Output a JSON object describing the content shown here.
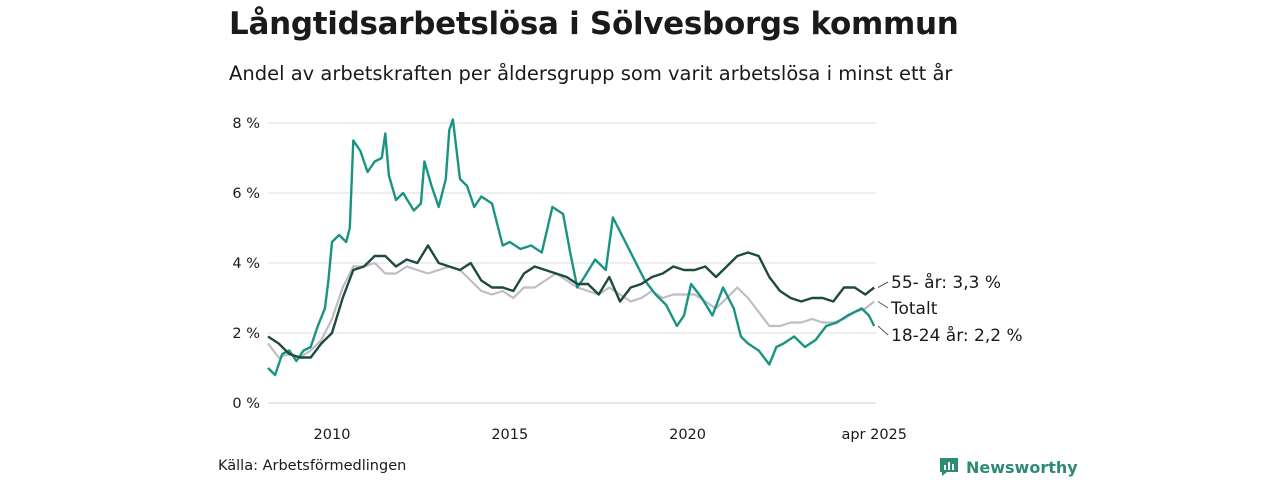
{
  "header": {
    "title": "Långtidsarbetslösa i Sölvesborgs kommun",
    "subtitle": "Andel av arbetskraften per åldersgrupp som varit arbetslösa i minst ett år"
  },
  "footer": {
    "source": "Källa: Arbetsförmedlingen",
    "brand": "Newsworthy"
  },
  "colors": {
    "age55": "#1f4a3f",
    "total": "#bfbcc6",
    "age18_24": "#1a9482",
    "grid": "#dddddd",
    "brand": "#2e8b73"
  },
  "chart_data": {
    "type": "line",
    "title": "Långtidsarbetslösa i Sölvesborgs kommun",
    "subtitle": "Andel av arbetskraften per åldersgrupp som varit arbetslösa i minst ett år",
    "xlabel": "",
    "ylabel": "",
    "x_range": [
      2008.2,
      2025.3
    ],
    "ylim": [
      0,
      8
    ],
    "grid": "horizontal",
    "x_ticks": [
      {
        "value": 2010,
        "label": "2010"
      },
      {
        "value": 2015,
        "label": "2015"
      },
      {
        "value": 2020,
        "label": "2020"
      },
      {
        "value": 2025.25,
        "label": "apr 2025"
      }
    ],
    "y_ticks": [
      {
        "value": 0,
        "label": "0 %"
      },
      {
        "value": 2,
        "label": "2 %"
      },
      {
        "value": 4,
        "label": "4 %"
      },
      {
        "value": 6,
        "label": "6 %"
      },
      {
        "value": 8,
        "label": "8 %"
      }
    ],
    "series": [
      {
        "key": "total",
        "label": "Totalt",
        "x": [
          2008.2,
          2008.5,
          2008.8,
          2009.1,
          2009.4,
          2009.7,
          2010.0,
          2010.3,
          2010.6,
          2010.9,
          2011.2,
          2011.5,
          2011.8,
          2012.1,
          2012.4,
          2012.7,
          2013.0,
          2013.3,
          2013.6,
          2013.9,
          2014.2,
          2014.5,
          2014.8,
          2015.1,
          2015.4,
          2015.7,
          2016.0,
          2016.3,
          2016.6,
          2016.9,
          2017.2,
          2017.5,
          2017.8,
          2018.1,
          2018.4,
          2018.7,
          2019.0,
          2019.3,
          2019.6,
          2019.9,
          2020.2,
          2020.5,
          2020.8,
          2021.1,
          2021.4,
          2021.7,
          2022.0,
          2022.3,
          2022.6,
          2022.9,
          2023.2,
          2023.5,
          2023.8,
          2024.1,
          2024.4,
          2024.7,
          2025.0,
          2025.25
        ],
        "values": [
          1.7,
          1.3,
          1.4,
          1.3,
          1.5,
          1.8,
          2.4,
          3.3,
          3.9,
          3.9,
          4.0,
          3.7,
          3.7,
          3.9,
          3.8,
          3.7,
          3.8,
          3.9,
          3.8,
          3.5,
          3.2,
          3.1,
          3.2,
          3.0,
          3.3,
          3.3,
          3.5,
          3.7,
          3.5,
          3.3,
          3.2,
          3.1,
          3.3,
          3.1,
          2.9,
          3.0,
          3.2,
          3.0,
          3.1,
          3.1,
          3.1,
          2.9,
          2.7,
          3.0,
          3.3,
          3.0,
          2.6,
          2.2,
          2.2,
          2.3,
          2.3,
          2.4,
          2.3,
          2.3,
          2.4,
          2.6,
          2.7,
          2.9
        ]
      },
      {
        "key": "age55",
        "label": "55- år: 3,3 %",
        "x": [
          2008.2,
          2008.5,
          2008.8,
          2009.1,
          2009.4,
          2009.7,
          2010.0,
          2010.3,
          2010.6,
          2010.9,
          2011.2,
          2011.5,
          2011.8,
          2012.1,
          2012.4,
          2012.7,
          2013.0,
          2013.3,
          2013.6,
          2013.9,
          2014.2,
          2014.5,
          2014.8,
          2015.1,
          2015.4,
          2015.7,
          2016.0,
          2016.3,
          2016.6,
          2016.9,
          2017.2,
          2017.5,
          2017.8,
          2018.1,
          2018.4,
          2018.7,
          2019.0,
          2019.3,
          2019.6,
          2019.9,
          2020.2,
          2020.5,
          2020.8,
          2021.1,
          2021.4,
          2021.7,
          2022.0,
          2022.3,
          2022.6,
          2022.9,
          2023.2,
          2023.5,
          2023.8,
          2024.1,
          2024.4,
          2024.7,
          2025.0,
          2025.25
        ],
        "values": [
          1.9,
          1.7,
          1.4,
          1.3,
          1.3,
          1.7,
          2.0,
          3.0,
          3.8,
          3.9,
          4.2,
          4.2,
          3.9,
          4.1,
          4.0,
          4.5,
          4.0,
          3.9,
          3.8,
          4.0,
          3.5,
          3.3,
          3.3,
          3.2,
          3.7,
          3.9,
          3.8,
          3.7,
          3.6,
          3.4,
          3.4,
          3.1,
          3.6,
          2.9,
          3.3,
          3.4,
          3.6,
          3.7,
          3.9,
          3.8,
          3.8,
          3.9,
          3.6,
          3.9,
          4.2,
          4.3,
          4.2,
          3.6,
          3.2,
          3.0,
          2.9,
          3.0,
          3.0,
          2.9,
          3.3,
          3.3,
          3.1,
          3.3
        ]
      },
      {
        "key": "age18_24",
        "label": "18-24 år: 2,2 %",
        "x": [
          2008.2,
          2008.4,
          2008.6,
          2008.8,
          2009.0,
          2009.2,
          2009.4,
          2009.6,
          2009.8,
          2009.9,
          2010.0,
          2010.2,
          2010.4,
          2010.5,
          2010.6,
          2010.8,
          2011.0,
          2011.2,
          2011.4,
          2011.5,
          2011.6,
          2011.8,
          2012.0,
          2012.3,
          2012.5,
          2012.6,
          2012.8,
          2013.0,
          2013.2,
          2013.3,
          2013.4,
          2013.6,
          2013.8,
          2014.0,
          2014.2,
          2014.5,
          2014.8,
          2015.0,
          2015.3,
          2015.6,
          2015.9,
          2016.2,
          2016.5,
          2016.7,
          2016.9,
          2017.1,
          2017.4,
          2017.7,
          2017.9,
          2018.2,
          2018.5,
          2018.8,
          2019.1,
          2019.4,
          2019.7,
          2019.9,
          2020.1,
          2020.4,
          2020.7,
          2021.0,
          2021.3,
          2021.5,
          2021.7,
          2022.0,
          2022.3,
          2022.5,
          2022.7,
          2023.0,
          2023.3,
          2023.6,
          2023.9,
          2024.2,
          2024.5,
          2024.7,
          2024.9,
          2025.1,
          2025.25
        ],
        "values": [
          1.0,
          0.8,
          1.4,
          1.5,
          1.2,
          1.5,
          1.6,
          2.2,
          2.7,
          3.5,
          4.6,
          4.8,
          4.6,
          5.0,
          7.5,
          7.2,
          6.6,
          6.9,
          7.0,
          7.7,
          6.5,
          5.8,
          6.0,
          5.5,
          5.7,
          6.9,
          6.2,
          5.6,
          6.4,
          7.8,
          8.1,
          6.4,
          6.2,
          5.6,
          5.9,
          5.7,
          4.5,
          4.6,
          4.4,
          4.5,
          4.3,
          5.6,
          5.4,
          4.3,
          3.3,
          3.6,
          4.1,
          3.8,
          5.3,
          4.7,
          4.1,
          3.5,
          3.1,
          2.8,
          2.2,
          2.5,
          3.4,
          3.0,
          2.5,
          3.3,
          2.7,
          1.9,
          1.7,
          1.5,
          1.1,
          1.6,
          1.7,
          1.9,
          1.6,
          1.8,
          2.2,
          2.3,
          2.5,
          2.6,
          2.7,
          2.5,
          2.2
        ]
      }
    ]
  }
}
